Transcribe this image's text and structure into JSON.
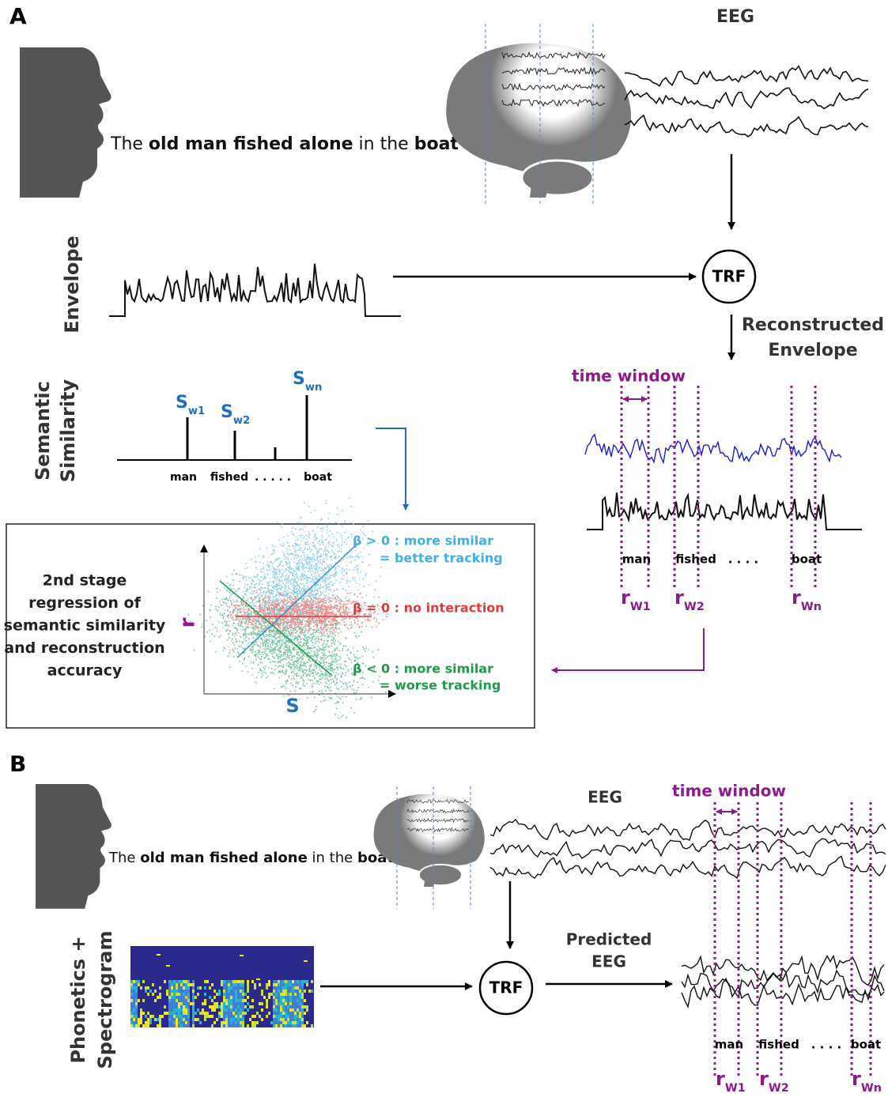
{
  "panel_a": {
    "label": "A",
    "eeg_label": "EEG",
    "sentence": [
      {
        "text": "The ",
        "bold": false
      },
      {
        "text": "old man fished alone",
        "bold": true
      },
      {
        "text": " in the ",
        "bold": false
      },
      {
        "text": "boat",
        "bold": true
      }
    ],
    "trf": "TRF",
    "envelope_label": "Envelope",
    "reconstructed_label": [
      "Reconstructed",
      "Envelope"
    ],
    "semantic_label": [
      "Semantic",
      "Similarity"
    ],
    "similarity_labels": [
      {
        "main": "S",
        "sub": "w1"
      },
      {
        "main": "S",
        "sub": "w2"
      },
      {
        "main": "S",
        "sub": "wn"
      }
    ],
    "words": [
      "man",
      "fished",
      ". . . . .",
      "boat"
    ],
    "time_window": "time window",
    "window_words": [
      "man",
      "fished",
      ". . . .",
      "boat"
    ],
    "r_labels": [
      {
        "main": "r",
        "sub": "W1"
      },
      {
        "main": "r",
        "sub": "W2"
      },
      {
        "main": "r",
        "sub": "Wn"
      }
    ],
    "regression": {
      "description": [
        "2nd stage",
        "regression of",
        "semantic similarity",
        "and reconstruction",
        "accuracy"
      ],
      "y_axis": "r",
      "x_axis": "S",
      "positive": [
        "β > 0 : more similar",
        "= better tracking"
      ],
      "zero": "β = 0 : no interaction",
      "negative": [
        "β < 0 : more similar",
        "= worse tracking"
      ]
    }
  },
  "panel_b": {
    "label": "B",
    "eeg_label": "EEG",
    "sentence": [
      {
        "text": "The ",
        "bold": false
      },
      {
        "text": "old man fished alone",
        "bold": true
      },
      {
        "text": " in the ",
        "bold": false
      },
      {
        "text": "boat",
        "bold": true
      }
    ],
    "time_window": "time window",
    "input_label": [
      "Phonetics +",
      "Spectrogram"
    ],
    "trf": "TRF",
    "predicted_label": [
      "Predicted",
      "EEG"
    ],
    "window_words": [
      "man",
      "fished",
      ". . . .",
      "boat"
    ],
    "r_labels": [
      {
        "main": "r",
        "sub": "W1"
      },
      {
        "main": "r",
        "sub": "W2"
      },
      {
        "main": "r",
        "sub": "Wn"
      }
    ]
  }
}
